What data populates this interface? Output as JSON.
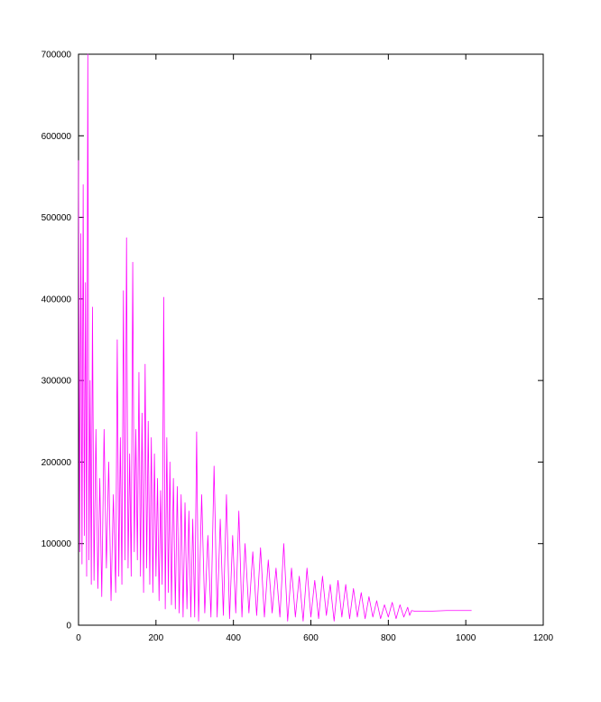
{
  "chart_data": {
    "type": "line",
    "title": "",
    "xlabel": "",
    "ylabel": "",
    "xlim": [
      0,
      1200
    ],
    "ylim": [
      0,
      700000
    ],
    "xticks": [
      0,
      200,
      400,
      600,
      800,
      1000,
      1200
    ],
    "yticks": [
      0,
      100000,
      200000,
      300000,
      400000,
      500000,
      600000,
      700000
    ],
    "grid": false,
    "legend": "none",
    "series": [
      {
        "color": "#ff00ff",
        "x": [
          0,
          3,
          6,
          9,
          12,
          15,
          18,
          21,
          24,
          27,
          30,
          33,
          36,
          40,
          45,
          50,
          55,
          60,
          66,
          72,
          78,
          84,
          90,
          96,
          100,
          104,
          108,
          112,
          116,
          120,
          124,
          128,
          132,
          136,
          140,
          144,
          148,
          152,
          156,
          160,
          164,
          168,
          172,
          176,
          180,
          184,
          188,
          192,
          196,
          200,
          204,
          208,
          212,
          216,
          220,
          224,
          228,
          232,
          236,
          240,
          245,
          250,
          255,
          260,
          265,
          270,
          275,
          280,
          285,
          290,
          295,
          300,
          305,
          310,
          318,
          326,
          334,
          342,
          350,
          358,
          366,
          374,
          382,
          390,
          398,
          406,
          414,
          422,
          430,
          440,
          450,
          460,
          470,
          480,
          490,
          500,
          510,
          520,
          530,
          540,
          550,
          560,
          570,
          580,
          590,
          600,
          610,
          620,
          630,
          640,
          650,
          660,
          670,
          680,
          690,
          700,
          710,
          720,
          730,
          740,
          750,
          760,
          770,
          780,
          790,
          800,
          810,
          820,
          830,
          840,
          850,
          855,
          860,
          870,
          900,
          950,
          1000,
          1015
        ],
        "y": [
          570000,
          90000,
          480000,
          75000,
          540000,
          110000,
          420000,
          60000,
          700000,
          80000,
          300000,
          50000,
          390000,
          55000,
          240000,
          45000,
          180000,
          35000,
          240000,
          70000,
          200000,
          30000,
          160000,
          40000,
          350000,
          60000,
          230000,
          50000,
          410000,
          80000,
          475000,
          70000,
          210000,
          60000,
          445000,
          90000,
          240000,
          80000,
          310000,
          60000,
          260000,
          40000,
          320000,
          70000,
          250000,
          50000,
          230000,
          40000,
          210000,
          60000,
          180000,
          30000,
          165000,
          50000,
          402000,
          20000,
          230000,
          40000,
          200000,
          25000,
          180000,
          20000,
          170000,
          15000,
          160000,
          10000,
          150000,
          20000,
          140000,
          10000,
          130000,
          10000,
          237000,
          5000,
          160000,
          15000,
          110000,
          10000,
          195000,
          10000,
          130000,
          12000,
          160000,
          8000,
          110000,
          15000,
          140000,
          10000,
          100000,
          15000,
          90000,
          12000,
          95000,
          10000,
          80000,
          15000,
          70000,
          10000,
          100000,
          5000,
          70000,
          10000,
          60000,
          5000,
          70000,
          10000,
          55000,
          8000,
          60000,
          12000,
          50000,
          5000,
          55000,
          10000,
          50000,
          8000,
          45000,
          10000,
          40000,
          8000,
          35000,
          10000,
          30000,
          8000,
          25000,
          10000,
          28000,
          8000,
          25000,
          10000,
          22000,
          12000,
          18000,
          17000,
          17000,
          18000,
          18000,
          18000
        ]
      }
    ]
  }
}
